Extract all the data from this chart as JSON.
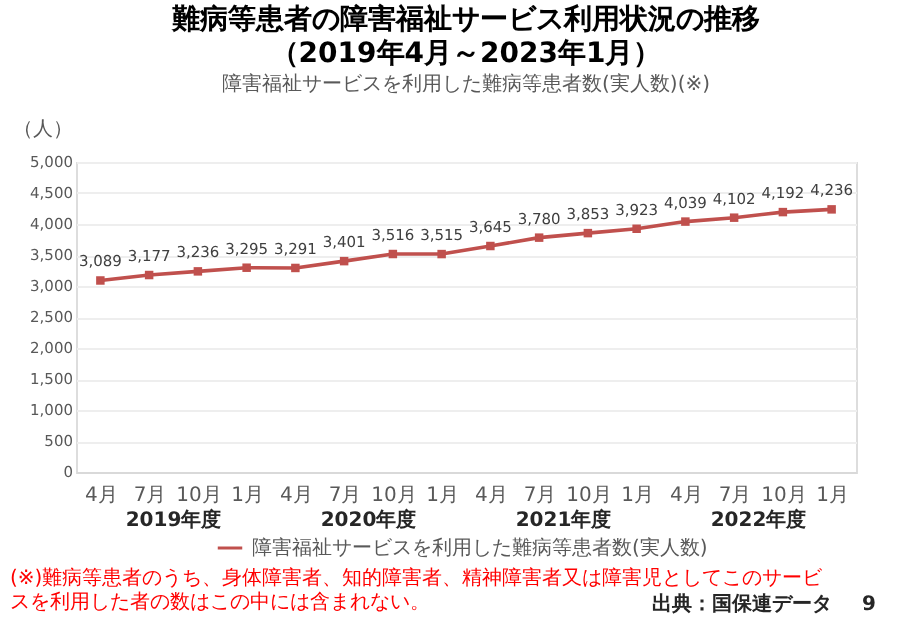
{
  "chart_data": {
    "type": "line",
    "title": "難病等患者の障害福祉サービス利用状況の推移（2019年4月～2023年1月）",
    "subtitle": "障害福祉サービスを利用した難病等患者数(実人数)(※)",
    "ylabel": "（人）",
    "categories": [
      "4月",
      "7月",
      "10月",
      "1月",
      "4月",
      "7月",
      "10月",
      "1月",
      "4月",
      "7月",
      "10月",
      "1月",
      "4月",
      "7月",
      "10月",
      "1月"
    ],
    "series": [
      {
        "name": "障害福祉サービスを利用した難病等患者数(実人数)",
        "color": "#c0504d",
        "line_style": "solid",
        "values": [
          3089,
          3177,
          3236,
          3295,
          3291,
          3401,
          3516,
          3515,
          3645,
          3780,
          3853,
          3923,
          4039,
          4102,
          4192,
          4236
        ],
        "value_labels": [
          "3,089",
          "3,177",
          "3,236",
          "3,295",
          "3,291",
          "3,401",
          "3,516",
          "3,515",
          "3,645",
          "3,780",
          "3,853",
          "3,923",
          "4,039",
          "4,102",
          "4,192",
          "4,236"
        ]
      }
    ],
    "ylim": [
      0,
      5000
    ],
    "yticks": [
      0,
      {
        "value": 500,
        "label": "500"
      },
      {
        "value": 1000,
        "label": "1,000"
      },
      {
        "value": 1500,
        "label": "1,500"
      },
      {
        "value": 2000,
        "label": "2,000"
      },
      {
        "value": 2500,
        "label": "2,500"
      },
      {
        "value": 3000,
        "label": "3,000"
      },
      {
        "value": 3500,
        "label": "3,500"
      },
      {
        "value": 4000,
        "label": "4,000"
      },
      {
        "value": 4500,
        "label": "4,500"
      },
      {
        "value": 5000,
        "label": "5,000"
      }
    ],
    "grid": "y",
    "legend": "bottom",
    "marker": "square",
    "annotations": [
      "2019年度",
      "2020年度",
      "2021年度",
      "2022年度",
      "(※)難病等患者のうち、身体障害者、知的障害者、精神障害者又は障害児としてこのサービスを利用した者の数はこの中には含まれない。",
      "出典：国保連データ",
      "9"
    ]
  }
}
